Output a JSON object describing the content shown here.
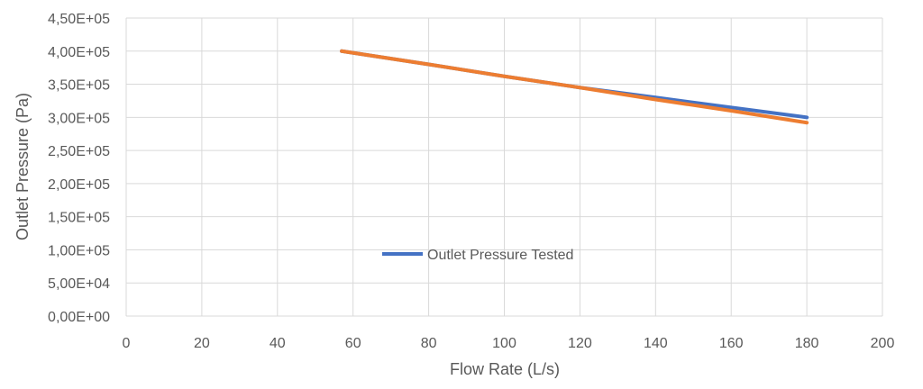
{
  "chart_data": {
    "type": "line",
    "title": "",
    "xlabel": "Flow Rate (L/s)",
    "ylabel": "Outlet Pressure (Pa)",
    "xlim": [
      0,
      200
    ],
    "ylim": [
      0,
      450000
    ],
    "xticks": [
      "0",
      "20",
      "40",
      "60",
      "80",
      "100",
      "120",
      "140",
      "160",
      "180",
      "200"
    ],
    "yticks": [
      "0,00E+00",
      "5,00E+04",
      "1,00E+05",
      "1,50E+05",
      "2,00E+05",
      "2,50E+05",
      "3,00E+05",
      "3,50E+05",
      "4,00E+05",
      "4,50E+05"
    ],
    "grid": true,
    "legend_position": "center-left inside plot",
    "series": [
      {
        "name": "Outlet Pressure Tested",
        "color": "#4472C4",
        "x": [
          57,
          80,
          100,
          120,
          140,
          160,
          180
        ],
        "y": [
          400000,
          380000,
          362000,
          345000,
          330000,
          315000,
          300000
        ]
      },
      {
        "color": "#ED7D31",
        "x": [
          57,
          80,
          100,
          120,
          140,
          160,
          180
        ],
        "y": [
          400000,
          380000,
          362000,
          345000,
          327000,
          310000,
          292000
        ]
      }
    ]
  }
}
